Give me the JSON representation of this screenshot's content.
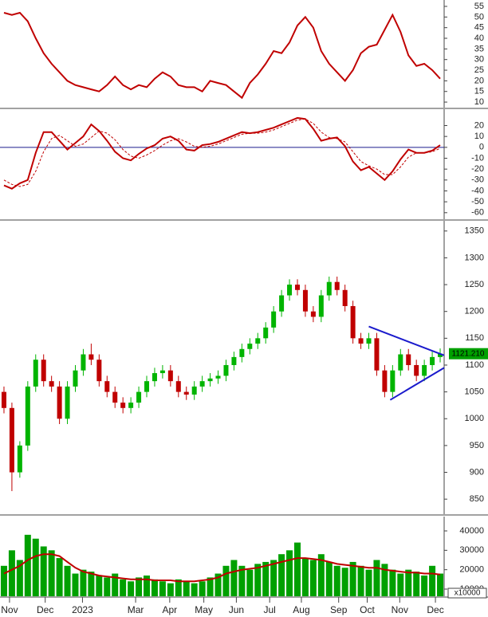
{
  "chart_data": [
    {
      "type": "line",
      "xlim": [
        -0.5,
        55.5
      ],
      "ylim": [
        7.4,
        58
      ],
      "yticks": [
        10,
        15,
        20,
        25,
        30,
        35,
        40,
        45,
        50,
        55
      ],
      "series": [
        {
          "color": "#c00000",
          "dash": false,
          "values": [
            52,
            51,
            52,
            48,
            40,
            33,
            28,
            24,
            20,
            18,
            17,
            16,
            15,
            18,
            22,
            18,
            16,
            18,
            17,
            21,
            24,
            22,
            18,
            17,
            17,
            15,
            20,
            19,
            18,
            15,
            12,
            19,
            23,
            28,
            34,
            33,
            38,
            46,
            50,
            45,
            34,
            28,
            24,
            20,
            25,
            33,
            36,
            37,
            44,
            51,
            43,
            32,
            27,
            28,
            25,
            21
          ]
        }
      ]
    },
    {
      "type": "line",
      "xlim": [
        -0.5,
        55.5
      ],
      "ylim": [
        -66,
        35
      ],
      "yticks": [
        20,
        10,
        0,
        -10,
        -20,
        -30,
        -40,
        -50,
        -60
      ],
      "reference_line": 0,
      "reference_color": "#1a1a8c",
      "series": [
        {
          "color": "#c00000",
          "dash": false,
          "values": [
            -35,
            -38,
            -33,
            -30,
            -5,
            14,
            14,
            6,
            -2,
            4,
            10,
            21,
            15,
            6,
            -4,
            -10,
            -12,
            -6,
            -1,
            2,
            8,
            10,
            6,
            -2,
            -3,
            2,
            3,
            5,
            8,
            11,
            14,
            13,
            14,
            16,
            18,
            21,
            24,
            27,
            26,
            17,
            6,
            8,
            9,
            1,
            -13,
            -21,
            -18,
            -24,
            -30,
            -22,
            -11,
            -2,
            -5,
            -5,
            -3,
            2
          ]
        },
        {
          "color": "#c00000",
          "dash": true,
          "values": [
            -30,
            -34,
            -36,
            -34,
            -22,
            -4,
            8,
            11,
            6,
            1,
            3,
            9,
            15,
            13,
            7,
            -2,
            -8,
            -10,
            -7,
            -3,
            2,
            6,
            8,
            5,
            1,
            0,
            1,
            3,
            6,
            9,
            12,
            13,
            13,
            14,
            16,
            19,
            22,
            25,
            26,
            22,
            14,
            9,
            8,
            5,
            -4,
            -13,
            -17,
            -20,
            -25,
            -25,
            -18,
            -9,
            -5,
            -5,
            -4,
            -1
          ]
        }
      ]
    },
    {
      "type": "candlestick",
      "xlim": [
        -0.5,
        55.5
      ],
      "ylim": [
        822,
        1369
      ],
      "yticks": [
        850,
        900,
        950,
        1000,
        1050,
        1100,
        1150,
        1200,
        1250,
        1300,
        1350
      ],
      "up_color": "#00b400",
      "down_color": "#c00000",
      "open": [
        1050,
        1020,
        900,
        950,
        1060,
        1110,
        1070,
        1060,
        1000,
        1060,
        1090,
        1120,
        1110,
        1070,
        1050,
        1030,
        1020,
        1030,
        1050,
        1070,
        1085,
        1090,
        1070,
        1050,
        1045,
        1060,
        1070,
        1075,
        1080,
        1100,
        1115,
        1130,
        1140,
        1150,
        1170,
        1200,
        1230,
        1250,
        1240,
        1200,
        1190,
        1230,
        1255,
        1240,
        1210,
        1150,
        1140,
        1150,
        1090,
        1050,
        1090,
        1120,
        1100,
        1080,
        1100,
        1115
      ],
      "high": [
        1060,
        1030,
        958,
        1070,
        1120,
        1120,
        1080,
        1070,
        1070,
        1100,
        1130,
        1140,
        1120,
        1080,
        1060,
        1040,
        1040,
        1060,
        1080,
        1095,
        1100,
        1100,
        1080,
        1060,
        1070,
        1080,
        1085,
        1090,
        1110,
        1125,
        1140,
        1150,
        1160,
        1180,
        1210,
        1240,
        1260,
        1260,
        1250,
        1210,
        1240,
        1265,
        1265,
        1250,
        1220,
        1160,
        1160,
        1160,
        1100,
        1100,
        1130,
        1130,
        1110,
        1110,
        1125,
        1131
      ],
      "low": [
        1010,
        865,
        890,
        940,
        1050,
        1060,
        1050,
        990,
        990,
        1050,
        1080,
        1100,
        1060,
        1040,
        1020,
        1010,
        1010,
        1020,
        1040,
        1060,
        1075,
        1060,
        1040,
        1035,
        1035,
        1050,
        1060,
        1065,
        1070,
        1090,
        1105,
        1120,
        1130,
        1140,
        1160,
        1190,
        1220,
        1230,
        1190,
        1180,
        1180,
        1220,
        1230,
        1200,
        1140,
        1130,
        1130,
        1080,
        1040,
        1040,
        1080,
        1090,
        1070,
        1070,
        1090,
        1105
      ],
      "close": [
        1020,
        900,
        950,
        1060,
        1110,
        1070,
        1060,
        1000,
        1060,
        1090,
        1120,
        1110,
        1070,
        1050,
        1030,
        1020,
        1030,
        1050,
        1070,
        1085,
        1090,
        1070,
        1050,
        1045,
        1060,
        1070,
        1075,
        1080,
        1100,
        1115,
        1130,
        1140,
        1150,
        1170,
        1200,
        1230,
        1250,
        1240,
        1200,
        1190,
        1230,
        1255,
        1240,
        1210,
        1150,
        1140,
        1150,
        1090,
        1050,
        1090,
        1120,
        1100,
        1080,
        1100,
        1115,
        1121.21
      ],
      "trendlines": [
        {
          "x": [
            46,
            55.5
          ],
          "y": [
            1172,
            1118
          ]
        },
        {
          "x": [
            48.7,
            55.5
          ],
          "y": [
            1035,
            1095
          ]
        }
      ],
      "trendline_color": "#1a1acc",
      "last_label": {
        "value": 1121.21,
        "label": "1121.210"
      },
      "last_label_color": "#00a000"
    },
    {
      "type": "bar",
      "xlim": [
        -0.5,
        55.5
      ],
      "ylim": [
        6300,
        47400
      ],
      "yticks": [
        10000,
        20000,
        30000,
        40000
      ],
      "color": "#00a000",
      "ma_color": "#c00000",
      "unit_label": "x10000",
      "values": [
        22000,
        30000,
        25000,
        38000,
        36000,
        32000,
        30000,
        26000,
        22000,
        18000,
        20000,
        19000,
        17000,
        16000,
        18000,
        15000,
        14000,
        16000,
        17000,
        15000,
        14000,
        13000,
        15000,
        14000,
        13000,
        14000,
        16000,
        18000,
        22000,
        25000,
        22000,
        20000,
        23000,
        24000,
        25000,
        28000,
        30000,
        34000,
        26000,
        25000,
        28000,
        24000,
        22000,
        21000,
        24000,
        22000,
        20000,
        25000,
        23000,
        20000,
        18000,
        20000,
        19000,
        17000,
        22000,
        18000
      ],
      "ma": [
        18000,
        20000,
        22000,
        25000,
        27000,
        28000,
        28000,
        27000,
        24000,
        21000,
        19000,
        18000,
        17000,
        16500,
        16000,
        15500,
        15000,
        15000,
        15000,
        14500,
        14500,
        14500,
        14000,
        14000,
        14000,
        14500,
        15000,
        16000,
        18000,
        19000,
        20000,
        20500,
        21000,
        22000,
        23000,
        24000,
        25000,
        26000,
        26000,
        25500,
        25000,
        24000,
        23000,
        22500,
        22000,
        21500,
        21000,
        21000,
        20000,
        19500,
        19000,
        18500,
        18500,
        18000,
        18000,
        17500
      ],
      "xticks": [
        {
          "value": 0.7,
          "label": "Nov"
        },
        {
          "value": 5.2,
          "label": "Dec"
        },
        {
          "value": 9.9,
          "label": "2023"
        },
        {
          "value": 16.6,
          "label": "Mar"
        },
        {
          "value": 20.9,
          "label": "Apr"
        },
        {
          "value": 25.2,
          "label": "May"
        },
        {
          "value": 29.3,
          "label": "Jun"
        },
        {
          "value": 33.5,
          "label": "Jul"
        },
        {
          "value": 37.5,
          "label": "Aug"
        },
        {
          "value": 42.2,
          "label": "Sep"
        },
        {
          "value": 45.8,
          "label": "Oct"
        },
        {
          "value": 49.9,
          "label": "Nov"
        },
        {
          "value": 54.4,
          "label": "Dec"
        }
      ]
    }
  ]
}
